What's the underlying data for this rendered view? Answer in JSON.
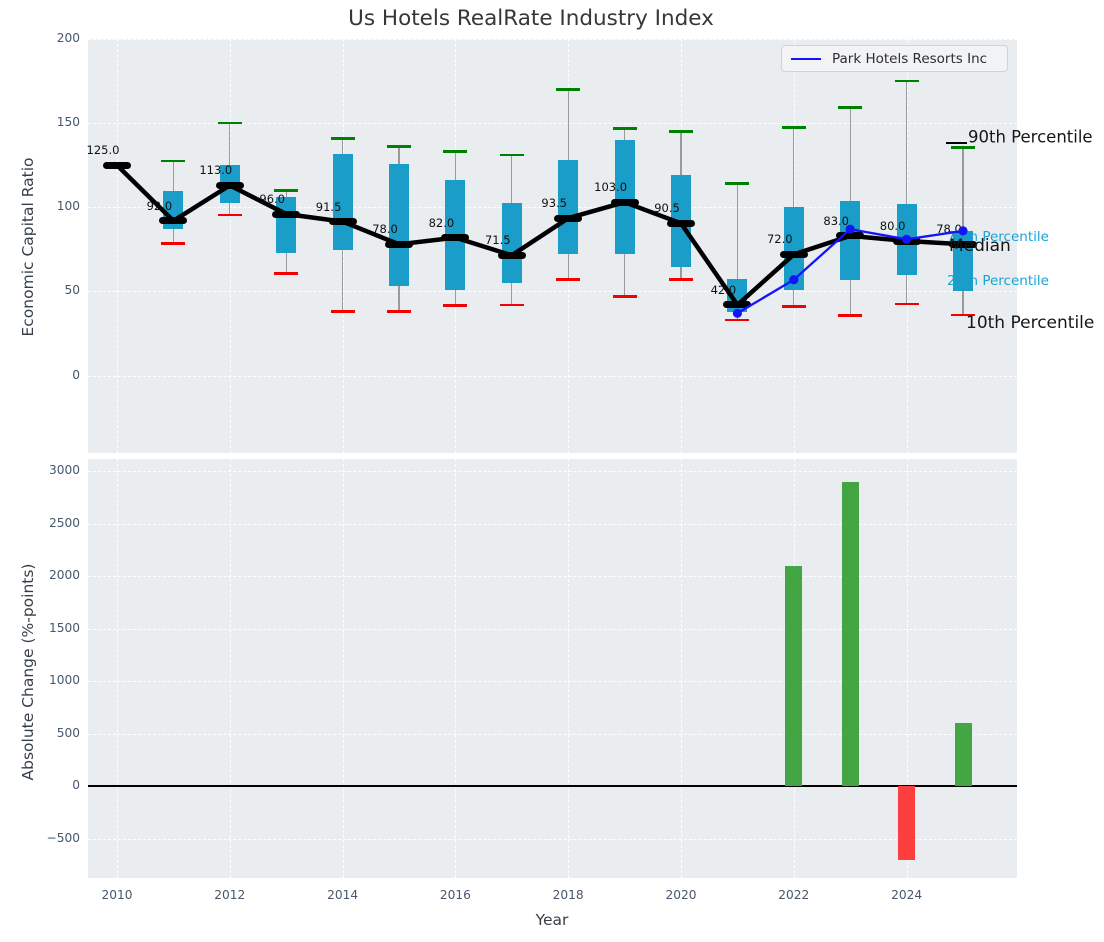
{
  "title": "Us Hotels RealRate Industry Index",
  "chart_data": [
    {
      "type": "boxplot+line",
      "title": "Us Hotels RealRate Industry Index",
      "ylabel": "Economic Capital Ratio",
      "xlabel": "Year",
      "ylim": [
        -46,
        200
      ],
      "yticks": [
        0,
        50,
        100,
        150,
        200
      ],
      "xticks": [
        2010,
        2012,
        2014,
        2016,
        2018,
        2020,
        2022,
        2024
      ],
      "grid": true,
      "legend_position": "upper right",
      "years": [
        2010,
        2011,
        2012,
        2013,
        2014,
        2015,
        2016,
        2017,
        2018,
        2019,
        2020,
        2021,
        2022,
        2023,
        2024,
        2025
      ],
      "median": [
        125,
        92,
        113,
        96,
        91.5,
        78,
        82,
        71.5,
        93.5,
        103,
        90.5,
        42,
        72,
        83,
        80,
        78
      ],
      "p25": [
        null,
        87,
        102.5,
        73,
        74.5,
        53.5,
        51,
        55,
        72.5,
        72,
        64.5,
        37.5,
        51,
        56.5,
        59.5,
        50.5
      ],
      "p75": [
        null,
        109.5,
        125,
        106,
        131.5,
        126,
        116.5,
        102.5,
        128,
        140,
        119.5,
        57.5,
        100,
        103.5,
        102,
        86
      ],
      "p10": [
        null,
        78.5,
        95.5,
        60.5,
        38,
        38,
        41.5,
        42,
        57,
        47,
        57,
        33,
        41,
        35.5,
        42.5,
        36
      ],
      "p90": [
        null,
        127.5,
        150,
        110,
        141,
        136,
        133,
        131,
        170,
        147,
        145,
        114,
        147.5,
        159.5,
        175,
        135.5
      ],
      "company": {
        "name": "Park Hotels Resorts Inc",
        "color": "#1414fa",
        "years": [
          2021,
          2022,
          2023,
          2024,
          2025
        ],
        "values": [
          37,
          57,
          87,
          81,
          86
        ]
      },
      "percentile_labels": [
        {
          "text": "90th Percentile",
          "color": "#161616"
        },
        {
          "text": "75th Percentile",
          "color": "#1ba3d8"
        },
        {
          "text": "Median",
          "color": "#161616"
        },
        {
          "text": "25th Percentile",
          "color": "#1ba3d8"
        },
        {
          "text": "10th Percentile",
          "color": "#161616"
        }
      ],
      "colors": {
        "box": "#1b9dca",
        "p90_cap": "#008000",
        "p10_cap": "#f40000",
        "median_marker": "#000000",
        "median_line": "#000000",
        "whisker": "#9a9a9a",
        "percentile_label": "#1ba3d8"
      }
    },
    {
      "type": "bar",
      "ylabel": "Absolute Change (%-points)",
      "xlabel": "Year",
      "ylim": [
        -876,
        3115
      ],
      "yticks": [
        -500,
        0,
        500,
        1000,
        1500,
        2000,
        2500,
        3000
      ],
      "xticks": [
        2010,
        2012,
        2014,
        2016,
        2018,
        2020,
        2022,
        2024
      ],
      "grid": true,
      "bars": [
        {
          "year": 2022,
          "value": 2100
        },
        {
          "year": 2023,
          "value": 2900
        },
        {
          "year": 2024,
          "value": -700
        },
        {
          "year": 2025,
          "value": 600
        }
      ],
      "colors": {
        "positive": "#44a544",
        "negative": "#fb3e3e",
        "zero_line": "#000000"
      }
    }
  ]
}
